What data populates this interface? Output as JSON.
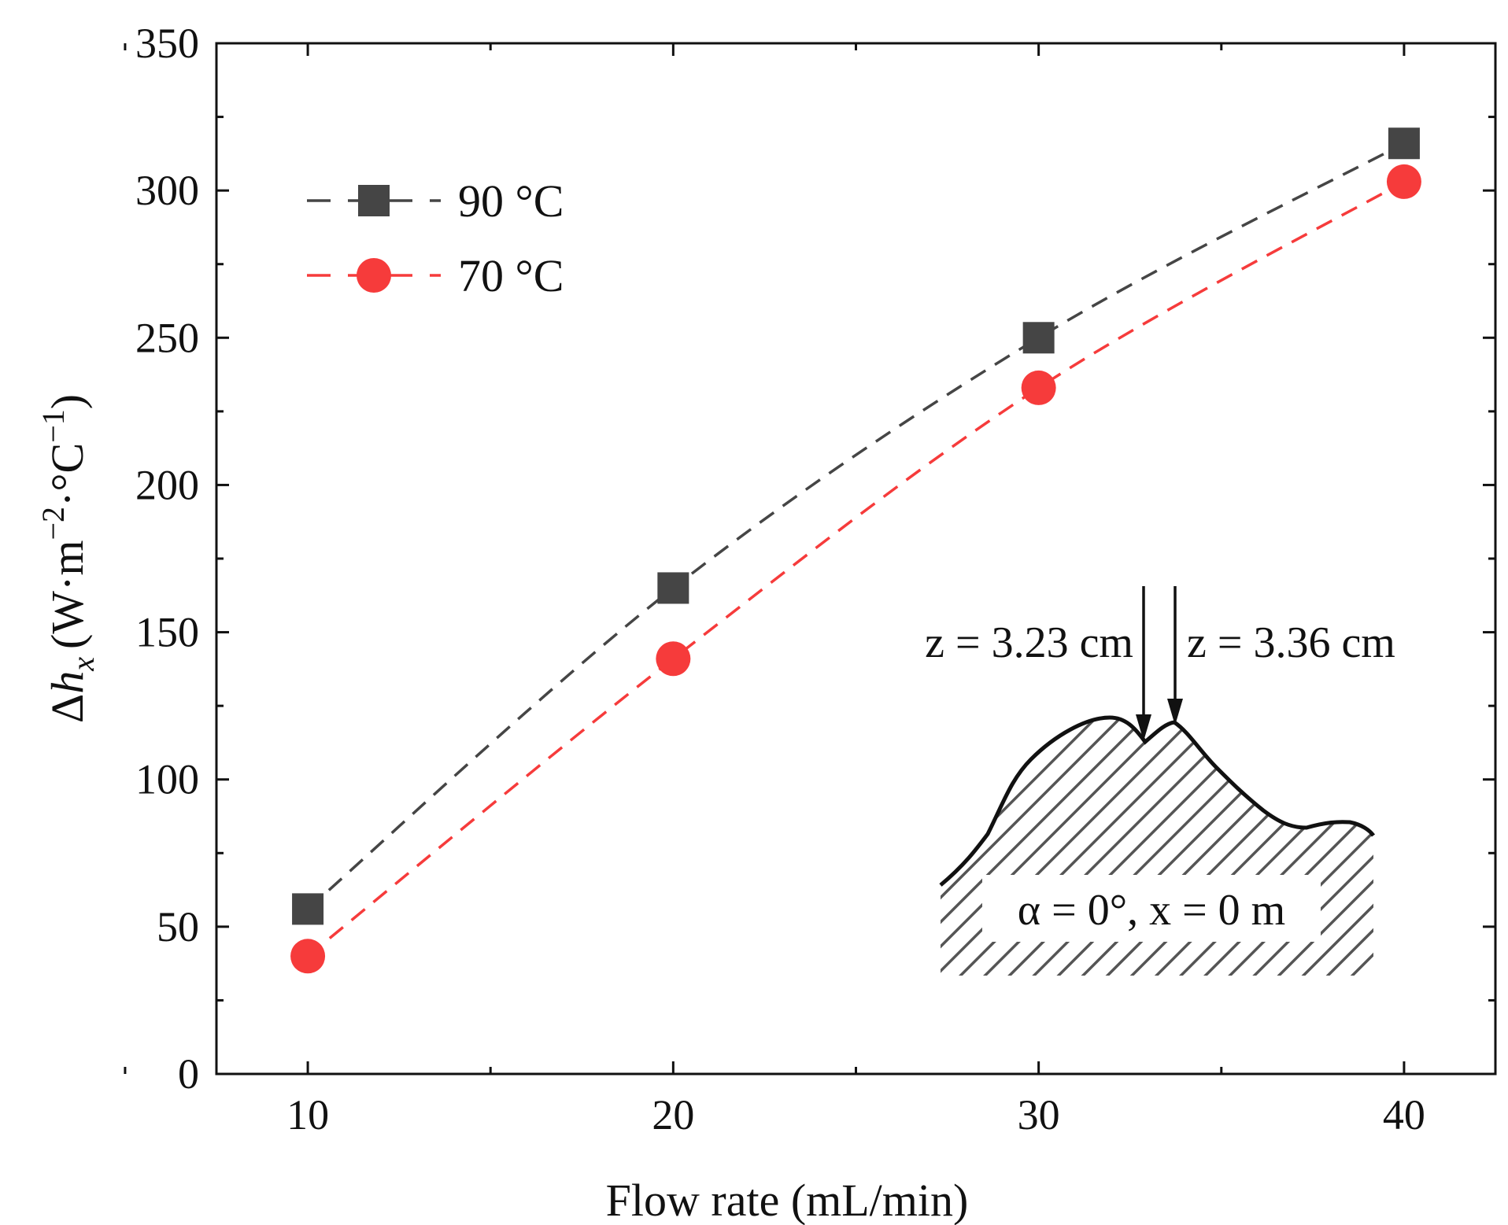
{
  "chart_data": {
    "type": "line",
    "title": "",
    "xlabel": "Flow rate (mL/min)",
    "ylabel_parts": {
      "delta": "Δ",
      "h": "h",
      "sub": "x",
      "unit": "(W·m",
      "exp1": "−2",
      "mid": "·°C",
      "exp2": "−1",
      "close": ")"
    },
    "x": [
      10,
      20,
      30,
      40
    ],
    "xlim": [
      7.5,
      42.5
    ],
    "ylim": [
      0,
      350
    ],
    "xticks": [
      "10",
      "20",
      "30",
      "40"
    ],
    "yticks": [
      "0",
      "50",
      "100",
      "150",
      "200",
      "250",
      "300",
      "350"
    ],
    "series": [
      {
        "name": "90 °C",
        "marker": "square",
        "color": "#454545",
        "values": [
          56,
          165,
          250,
          316
        ]
      },
      {
        "name": "70 °C",
        "marker": "circle",
        "color": "#f63b3b",
        "values": [
          40,
          141,
          233,
          303
        ]
      }
    ],
    "legend": "top-left",
    "inset": {
      "label1": "z = 3.23 cm",
      "label2": "z = 3.36 cm",
      "caption": "α = 0°, x = 0 m"
    }
  }
}
